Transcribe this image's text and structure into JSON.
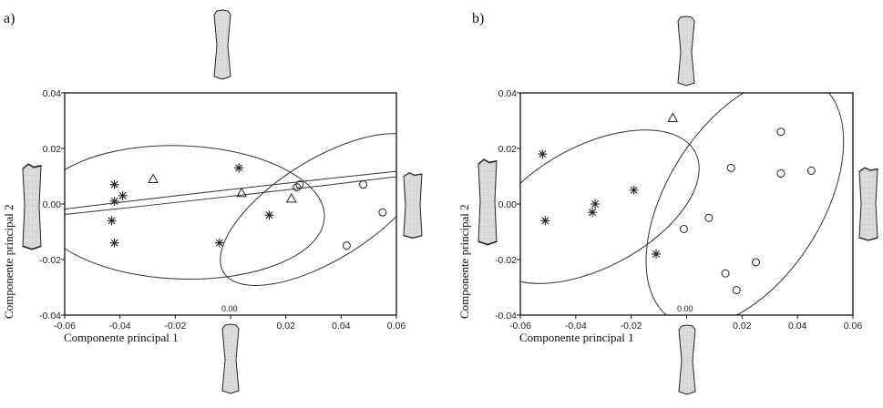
{
  "figure": {
    "panels": [
      {
        "label": "a)",
        "xlabel": "Componente principal 1",
        "ylabel": "Componente principal 2",
        "origin_label": "0.00"
      },
      {
        "label": "b)",
        "xlabel": "Componente principal 1",
        "ylabel": "Componente principal 2",
        "origin_label": "0.00"
      }
    ],
    "colors": {
      "axis": "#111111",
      "shape_fill": "#d8d8d8",
      "shape_stroke": "#222222",
      "marker": "#222222"
    }
  },
  "chart_data": [
    {
      "type": "scatter",
      "title": "a)",
      "xlabel": "Componente principal 1",
      "ylabel": "Componente principal 2",
      "xlim": [
        -0.06,
        0.06
      ],
      "ylim": [
        -0.04,
        0.04
      ],
      "xticks": [
        "-0.06",
        "-0.04",
        "-0.02",
        "0.00",
        "0.02",
        "0.04",
        "0.06"
      ],
      "yticks": [
        "-0.04",
        "-0.02",
        "0.00",
        "0.02",
        "0.04"
      ],
      "grid": false,
      "series": [
        {
          "name": "asterisk",
          "marker": "*",
          "points": [
            [
              -0.042,
              0.007
            ],
            [
              -0.042,
              0.001
            ],
            [
              -0.039,
              0.003
            ],
            [
              -0.043,
              -0.006
            ],
            [
              -0.042,
              -0.014
            ],
            [
              -0.004,
              -0.014
            ],
            [
              0.003,
              0.013
            ],
            [
              0.014,
              -0.004
            ]
          ]
        },
        {
          "name": "triangle",
          "marker": "^",
          "points": [
            [
              -0.028,
              0.009
            ],
            [
              0.004,
              0.004
            ],
            [
              0.022,
              0.002
            ]
          ]
        },
        {
          "name": "circle",
          "marker": "o",
          "points": [
            [
              0.024,
              0.006
            ],
            [
              0.025,
              0.007
            ],
            [
              0.048,
              0.007
            ],
            [
              0.042,
              -0.015
            ],
            [
              0.055,
              -0.003
            ]
          ]
        }
      ],
      "ellipses": [
        {
          "group": "asterisk",
          "cx": -0.018,
          "cy": -0.003,
          "rx": 0.052,
          "ry": 0.024,
          "angle_deg": -2
        },
        {
          "group": "triangle",
          "note": "very thin ellipse (near line)",
          "cx": 0.0,
          "cy": 0.004,
          "rx": 0.1,
          "ry": 0.0012,
          "angle_deg": 6.5
        },
        {
          "group": "circle",
          "cx": 0.034,
          "cy": -0.002,
          "rx": 0.043,
          "ry": 0.018,
          "angle_deg": 32
        }
      ]
    },
    {
      "type": "scatter",
      "title": "b)",
      "xlabel": "Componente principal 1",
      "ylabel": "Componente principal 2",
      "xlim": [
        -0.06,
        0.06
      ],
      "ylim": [
        -0.04,
        0.04
      ],
      "xticks": [
        "-0.06",
        "-0.04",
        "-0.02",
        "0.00",
        "0.02",
        "0.04",
        "0.06"
      ],
      "yticks": [
        "-0.04",
        "-0.02",
        "0.00",
        "0.02",
        "0.04"
      ],
      "grid": false,
      "series": [
        {
          "name": "asterisk",
          "marker": "*",
          "points": [
            [
              -0.052,
              0.018
            ],
            [
              -0.051,
              -0.006
            ],
            [
              -0.034,
              -0.003
            ],
            [
              -0.033,
              0.0
            ],
            [
              -0.019,
              0.005
            ],
            [
              -0.011,
              -0.018
            ]
          ]
        },
        {
          "name": "triangle",
          "marker": "^",
          "points": [
            [
              -0.005,
              0.031
            ]
          ]
        },
        {
          "name": "circle",
          "marker": "o",
          "points": [
            [
              -0.001,
              -0.009
            ],
            [
              0.008,
              -0.005
            ],
            [
              0.014,
              -0.025
            ],
            [
              0.016,
              0.013
            ],
            [
              0.018,
              -0.031
            ],
            [
              0.025,
              -0.021
            ],
            [
              0.034,
              0.026
            ],
            [
              0.034,
              0.011
            ],
            [
              0.045,
              0.012
            ]
          ]
        }
      ],
      "ellipses": [
        {
          "group": "asterisk",
          "cx": -0.034,
          "cy": -0.001,
          "rx": 0.042,
          "ry": 0.022,
          "angle_deg": 28
        },
        {
          "group": "circle",
          "cx": 0.021,
          "cy": 0.001,
          "rx": 0.05,
          "ry": 0.028,
          "angle_deg": 58
        }
      ]
    }
  ]
}
